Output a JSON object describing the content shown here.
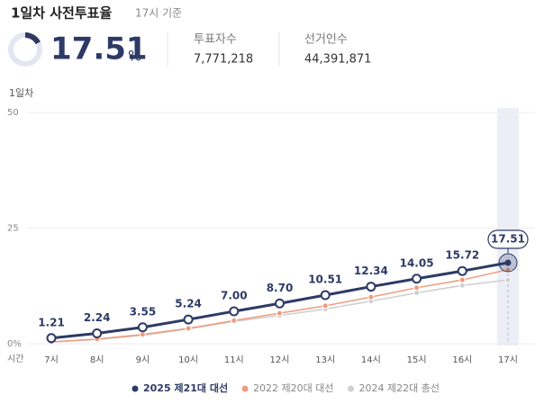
{
  "header": {
    "title": "1일차 사전투표율",
    "subtitle": "17시 기준",
    "rate": 17.51,
    "rate_unit": "%",
    "voters_label": "투표자수",
    "voters": "7,771,218",
    "electorate_label": "선거인수",
    "electorate": "44,391,871"
  },
  "chart_data": {
    "type": "line",
    "title": "1일차",
    "x_label": "시간",
    "categories": [
      "7시",
      "8시",
      "9시",
      "10시",
      "11시",
      "12시",
      "13시",
      "14시",
      "15시",
      "16시",
      "17시"
    ],
    "series": [
      {
        "name": "2025 제21대 대선",
        "color": "#2d3a66",
        "values": [
          1.21,
          2.24,
          3.55,
          5.24,
          7.0,
          8.7,
          10.51,
          12.34,
          14.05,
          15.72,
          17.51
        ],
        "value_labels": [
          "1.21",
          "2.24",
          "3.55",
          "5.24",
          "7.00",
          "8.70",
          "10.51",
          "12.34",
          "14.05",
          "15.72",
          "17.51"
        ]
      },
      {
        "name": "2022 제20대 대선",
        "color": "#ef9b7d",
        "values": [
          0.4,
          1.0,
          2.0,
          3.3,
          5.0,
          6.6,
          8.2,
          10.1,
          12.1,
          13.8,
          16.0
        ]
      },
      {
        "name": "2024 제22대 총선",
        "color": "#cfcfcf",
        "values": [
          0.4,
          0.9,
          1.8,
          3.2,
          4.8,
          6.1,
          7.5,
          9.2,
          11.0,
          12.6,
          13.8
        ]
      }
    ],
    "ylim": [
      0,
      50
    ],
    "yticks": [
      {
        "value": 0,
        "label": "0%"
      },
      25,
      50
    ],
    "grid": true
  }
}
